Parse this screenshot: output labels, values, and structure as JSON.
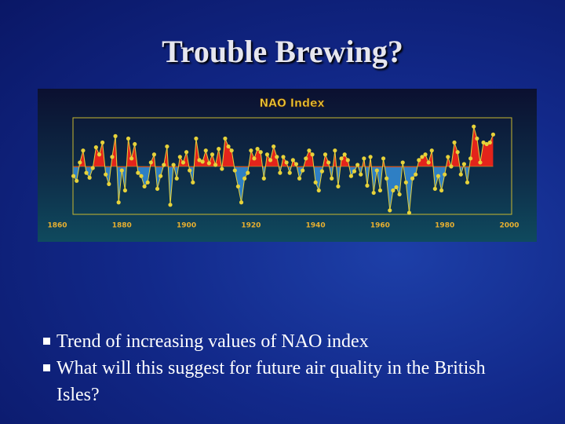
{
  "header": {
    "title": "Trouble Brewing?"
  },
  "bullets": [
    "Trend of increasing values of NAO index",
    "What will this suggest for future air quality in the British Isles?"
  ],
  "chart_data": {
    "type": "line",
    "title": "NAO Index",
    "x": [
      1865,
      1866,
      1867,
      1868,
      1869,
      1870,
      1871,
      1872,
      1873,
      1874,
      1875,
      1876,
      1877,
      1878,
      1879,
      1880,
      1881,
      1882,
      1883,
      1884,
      1885,
      1886,
      1887,
      1888,
      1889,
      1890,
      1891,
      1892,
      1893,
      1894,
      1895,
      1896,
      1897,
      1898,
      1899,
      1900,
      1901,
      1902,
      1903,
      1904,
      1905,
      1906,
      1907,
      1908,
      1909,
      1910,
      1911,
      1912,
      1913,
      1914,
      1915,
      1916,
      1917,
      1918,
      1919,
      1920,
      1921,
      1922,
      1923,
      1924,
      1925,
      1926,
      1927,
      1928,
      1929,
      1930,
      1931,
      1932,
      1933,
      1934,
      1935,
      1936,
      1937,
      1938,
      1939,
      1940,
      1941,
      1942,
      1943,
      1944,
      1945,
      1946,
      1947,
      1948,
      1949,
      1950,
      1951,
      1952,
      1953,
      1954,
      1955,
      1956,
      1957,
      1958,
      1959,
      1960,
      1961,
      1962,
      1963,
      1964,
      1965,
      1966,
      1967,
      1968,
      1969,
      1970,
      1971,
      1972,
      1973,
      1974,
      1975,
      1976,
      1977,
      1978,
      1979,
      1980,
      1981,
      1982,
      1983,
      1984,
      1985,
      1986,
      1987,
      1988,
      1989,
      1990,
      1991,
      1992,
      1993,
      1994,
      1995
    ],
    "values": [
      -1.2,
      -1.8,
      0.5,
      2.0,
      -0.8,
      -1.4,
      -0.2,
      2.4,
      1.5,
      3.0,
      -1.0,
      -2.2,
      1.2,
      3.8,
      -4.5,
      -0.5,
      -3.0,
      3.5,
      1.0,
      2.8,
      -0.8,
      -1.2,
      -2.5,
      -2.0,
      0.5,
      1.5,
      -2.8,
      -1.2,
      0.2,
      2.5,
      -4.8,
      0.2,
      -1.5,
      1.2,
      0.5,
      1.8,
      -0.5,
      -2.0,
      3.5,
      0.8,
      0.6,
      2.0,
      0.4,
      1.5,
      0.2,
      2.2,
      -0.3,
      3.5,
      2.5,
      2.0,
      -0.5,
      -2.5,
      -4.5,
      -1.5,
      -0.8,
      2.0,
      1.0,
      2.2,
      1.8,
      -1.5,
      1.5,
      0.8,
      2.5,
      1.2,
      -0.8,
      1.2,
      0.5,
      -0.8,
      0.8,
      0.3,
      -1.5,
      -0.5,
      1.0,
      2.0,
      1.5,
      -2.0,
      -3.0,
      -0.6,
      1.5,
      0.5,
      -1.5,
      2.0,
      -2.5,
      1.0,
      1.5,
      0.8,
      -1.2,
      -0.6,
      0.2,
      -1.0,
      1.0,
      -2.4,
      1.2,
      -3.3,
      -0.5,
      -3.0,
      1.0,
      -1.5,
      -5.5,
      -3.0,
      -2.6,
      -3.5,
      0.5,
      -2.0,
      -5.8,
      -1.5,
      -1.0,
      0.8,
      1.2,
      1.5,
      0.5,
      2.0,
      -2.8,
      -1.2,
      -3.0,
      -1.0,
      1.2,
      0.0,
      3.0,
      1.8,
      -1.0,
      0.3,
      -2.0,
      1.0,
      5.0,
      3.5,
      0.5,
      3.0,
      2.8,
      3.0,
      4.0
    ],
    "xlim": [
      1860,
      2000
    ],
    "xticks": [
      1860,
      1880,
      1900,
      1920,
      1940,
      1960,
      1980,
      2000
    ],
    "ylim": [
      -6,
      6
    ],
    "line_color": "#e6d23a",
    "positive_color": "#e3241b",
    "negative_color": "#2e7fc4"
  }
}
